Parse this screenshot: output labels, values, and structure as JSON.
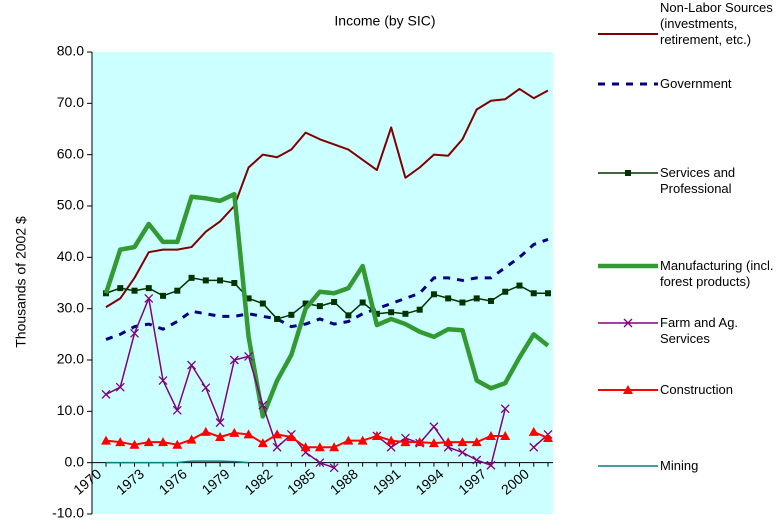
{
  "chart_data": {
    "type": "line",
    "title": "Income (by SIC)",
    "y_label": "Thousands of 2002 $",
    "categories": [
      "1970",
      null,
      null,
      "1973",
      null,
      null,
      "1976",
      null,
      null,
      "1979",
      null,
      null,
      "1982",
      null,
      null,
      "1985",
      null,
      null,
      "1988",
      null,
      null,
      "1991",
      null,
      null,
      "1994",
      null,
      null,
      "1997",
      null,
      null,
      "2000",
      null
    ],
    "ylim": [
      -10,
      80
    ],
    "yticks": [
      {
        "value": -10,
        "label": "-10.0"
      },
      {
        "value": 0,
        "label": "0.0"
      },
      {
        "value": 10,
        "label": "10.0"
      },
      {
        "value": 20,
        "label": "20.0"
      },
      {
        "value": 30,
        "label": "30.0"
      },
      {
        "value": 40,
        "label": "40.0"
      },
      {
        "value": 50,
        "label": "50.0"
      },
      {
        "value": 60,
        "label": "60.0"
      },
      {
        "value": 70,
        "label": "70.0"
      },
      {
        "value": 80,
        "label": "80.0"
      }
    ],
    "background": "#ccffff",
    "legend": "right",
    "series": [
      {
        "name": "Non-Labor Sources (investments, retirement, etc.)",
        "color": "#800000",
        "marker": "none",
        "dash": false,
        "width": 2,
        "values": [
          30.3,
          32.0,
          36.0,
          41.0,
          41.5,
          41.5,
          42.0,
          45.0,
          47.0,
          50.0,
          57.5,
          60.0,
          59.5,
          61.0,
          64.3,
          63.0,
          62.0,
          61.0,
          59.0,
          57.0,
          65.3,
          55.5,
          57.5,
          60.0,
          59.8,
          63.0,
          68.8,
          70.5,
          70.8,
          72.8,
          71.0,
          72.5
        ]
      },
      {
        "name": "Government",
        "color": "#000080",
        "marker": "none",
        "dash": true,
        "width": 3,
        "values": [
          24.0,
          25.0,
          26.5,
          27.0,
          26.0,
          27.5,
          29.5,
          29.0,
          28.5,
          28.5,
          29.0,
          28.5,
          28.0,
          26.5,
          27.0,
          28.0,
          27.0,
          27.5,
          29.0,
          30.0,
          31.0,
          32.0,
          33.0,
          36.0,
          36.0,
          35.5,
          36.0,
          36.0,
          38.0,
          40.0,
          42.5,
          43.5
        ]
      },
      {
        "name": "Services and Professional",
        "color": "#003300",
        "marker": "square",
        "dash": false,
        "width": 1.5,
        "values": [
          33.0,
          34.0,
          33.5,
          34.0,
          32.5,
          33.5,
          36.0,
          35.5,
          35.5,
          35.0,
          32.0,
          31.0,
          28.0,
          28.8,
          31.0,
          30.5,
          31.3,
          28.7,
          31.2,
          29.0,
          29.3,
          29.0,
          29.8,
          32.8,
          32.0,
          31.2,
          32.0,
          31.5,
          33.3,
          34.5,
          33.0,
          33.0
        ]
      },
      {
        "name": "Manufacturing (incl. forest products)",
        "color": "#339933",
        "marker": "none",
        "dash": false,
        "width": 4.5,
        "values": [
          33.0,
          41.5,
          42.0,
          46.5,
          43.0,
          43.0,
          51.8,
          51.5,
          51.0,
          52.3,
          24.5,
          9.0,
          16.0,
          21.0,
          30.0,
          33.3,
          33.0,
          34.0,
          38.3,
          26.8,
          28.0,
          27.0,
          25.5,
          24.5,
          26.0,
          25.8,
          16.0,
          14.5,
          15.5,
          20.5,
          25.0,
          22.8
        ]
      },
      {
        "name": "Farm and Ag. Services",
        "color": "#800080",
        "marker": "x",
        "dash": false,
        "width": 1.5,
        "values": [
          13.3,
          14.7,
          25.2,
          32.0,
          16.0,
          10.2,
          19.0,
          14.6,
          7.8,
          20.0,
          20.7,
          11.2,
          3.0,
          5.5,
          2.0,
          0.0,
          -1.0,
          null,
          null,
          5.2,
          3.0,
          4.8,
          3.8,
          7.0,
          3.0,
          2.0,
          0.5,
          -0.5,
          10.5,
          null,
          3.0,
          5.5
        ]
      },
      {
        "name": "Construction",
        "color": "#ff0000",
        "marker": "triangle",
        "dash": false,
        "width": 2,
        "values": [
          4.3,
          4.0,
          3.5,
          4.0,
          4.0,
          3.5,
          4.5,
          6.0,
          5.0,
          5.8,
          5.5,
          3.8,
          5.5,
          5.0,
          3.0,
          3.0,
          3.0,
          4.3,
          4.3,
          5.2,
          4.3,
          4.0,
          4.0,
          3.8,
          4.0,
          4.0,
          4.0,
          5.2,
          5.2,
          null,
          6.0,
          4.8
        ]
      },
      {
        "name": "Mining",
        "color": "#008080",
        "marker": "none",
        "dash": false,
        "width": 1.5,
        "values": [
          0.0,
          0.0,
          0.0,
          0.0,
          0.0,
          0.0,
          0.3,
          0.3,
          0.3,
          0.2,
          0.0,
          null,
          null,
          null,
          null,
          null,
          null,
          null,
          null,
          null,
          null,
          null,
          null,
          null,
          null,
          null,
          null,
          null,
          null,
          null,
          null,
          null
        ]
      }
    ]
  }
}
